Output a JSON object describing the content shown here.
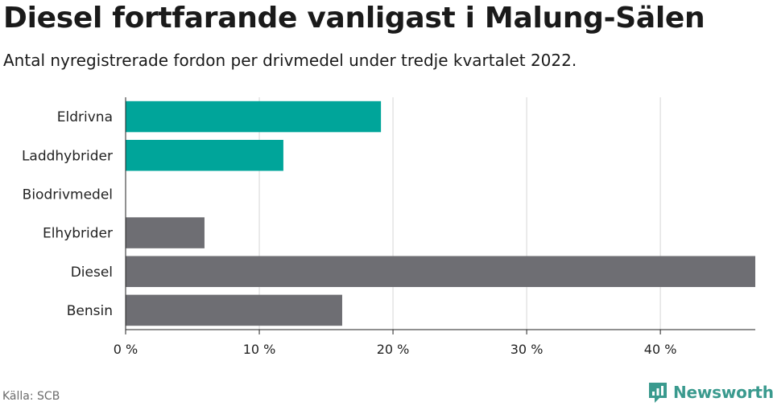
{
  "title": "Diesel fortfarande vanligast i Malung-Sälen",
  "subtitle": "Antal nyregistrerade fordon per drivmedel under tredje kvartalet 2022.",
  "source": "Källa: SCB",
  "brand": {
    "name": "Newsworthy",
    "icon": "bar-chart-logo-icon",
    "color": "#3a9a8e"
  },
  "colors": {
    "highlight": "#00a59a",
    "default": "#6e6e73",
    "grid": "#dcdcdc",
    "axis": "#222222"
  },
  "chart_data": {
    "type": "bar",
    "orientation": "horizontal",
    "categories": [
      "Eldrivna",
      "Laddhybrider",
      "Biodrivmedel",
      "Elhybrider",
      "Diesel",
      "Bensin"
    ],
    "values": [
      19.1,
      11.8,
      0,
      5.9,
      47.1,
      16.2
    ],
    "highlighted": [
      true,
      true,
      false,
      false,
      false,
      false
    ],
    "xlim": [
      0,
      47.1
    ],
    "xticks": [
      0,
      10,
      20,
      30,
      40
    ],
    "xtick_labels": [
      "0 %",
      "10 %",
      "20 %",
      "30 %",
      "40 %"
    ],
    "xlabel": "",
    "ylabel": ""
  }
}
